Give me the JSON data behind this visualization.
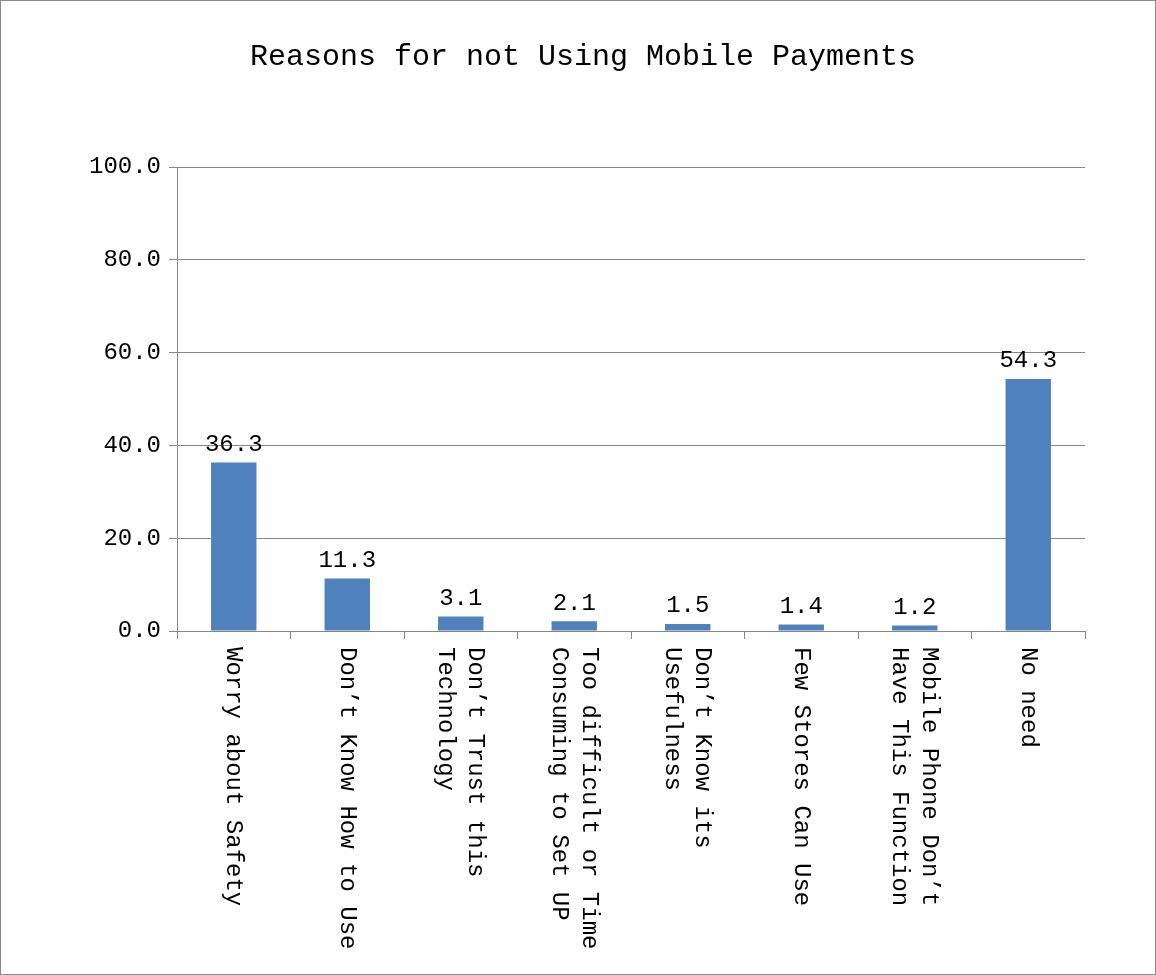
{
  "chart_data": {
    "type": "bar",
    "title": "Reasons for not Using Mobile Payments",
    "categories": [
      "Worry about Safety",
      "Don’t Know How to Use",
      "Don’t Trust this Technology",
      "Too difficult or Time Consuming to Set UP",
      "Don’t Know its Usefulness",
      "Few Stores Can Use",
      "Mobile Phone Don’t Have This Function",
      "No need"
    ],
    "values": [
      36.3,
      11.3,
      3.1,
      2.1,
      1.5,
      1.4,
      1.2,
      54.3
    ],
    "color": "#4f81bd",
    "ylim": [
      0,
      100
    ],
    "yticks": [
      {
        "value": 0,
        "label": "0.0"
      },
      {
        "value": 20,
        "label": "20.0"
      },
      {
        "value": 40,
        "label": "40.0"
      },
      {
        "value": 60,
        "label": "60.0"
      },
      {
        "value": 80,
        "label": "80.0"
      },
      {
        "value": 100,
        "label": "100.0"
      }
    ],
    "grid": "y",
    "data_labels": true
  }
}
